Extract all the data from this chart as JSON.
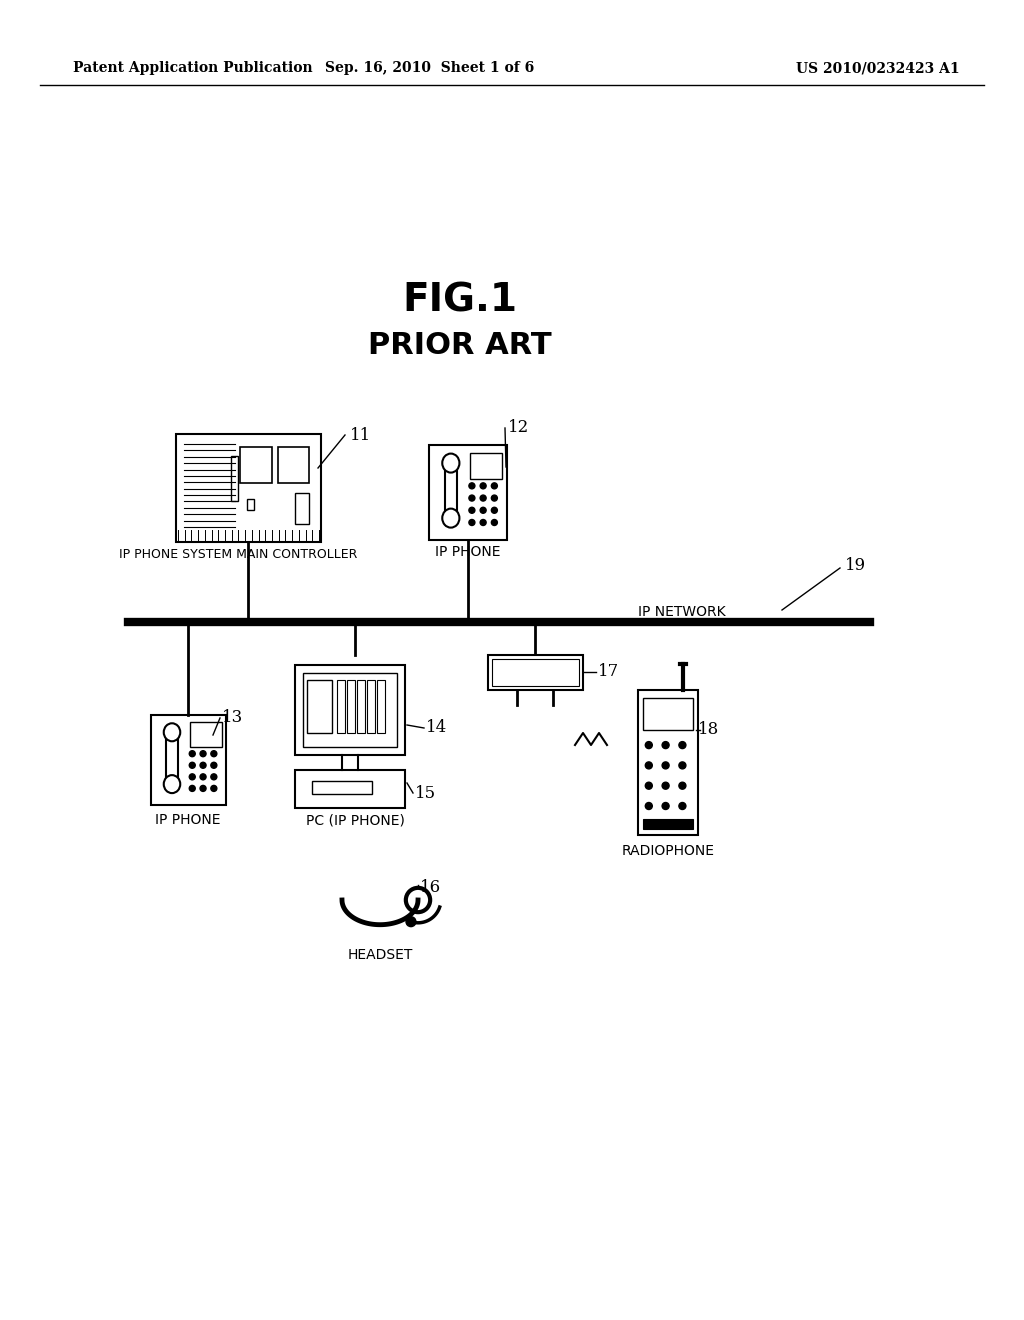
{
  "bg_color": "#ffffff",
  "header_left": "Patent Application Publication",
  "header_center": "Sep. 16, 2010  Sheet 1 of 6",
  "header_right": "US 2010/0232423 A1",
  "fig_title": "FIG.1",
  "fig_subtitle": "PRIOR ART"
}
